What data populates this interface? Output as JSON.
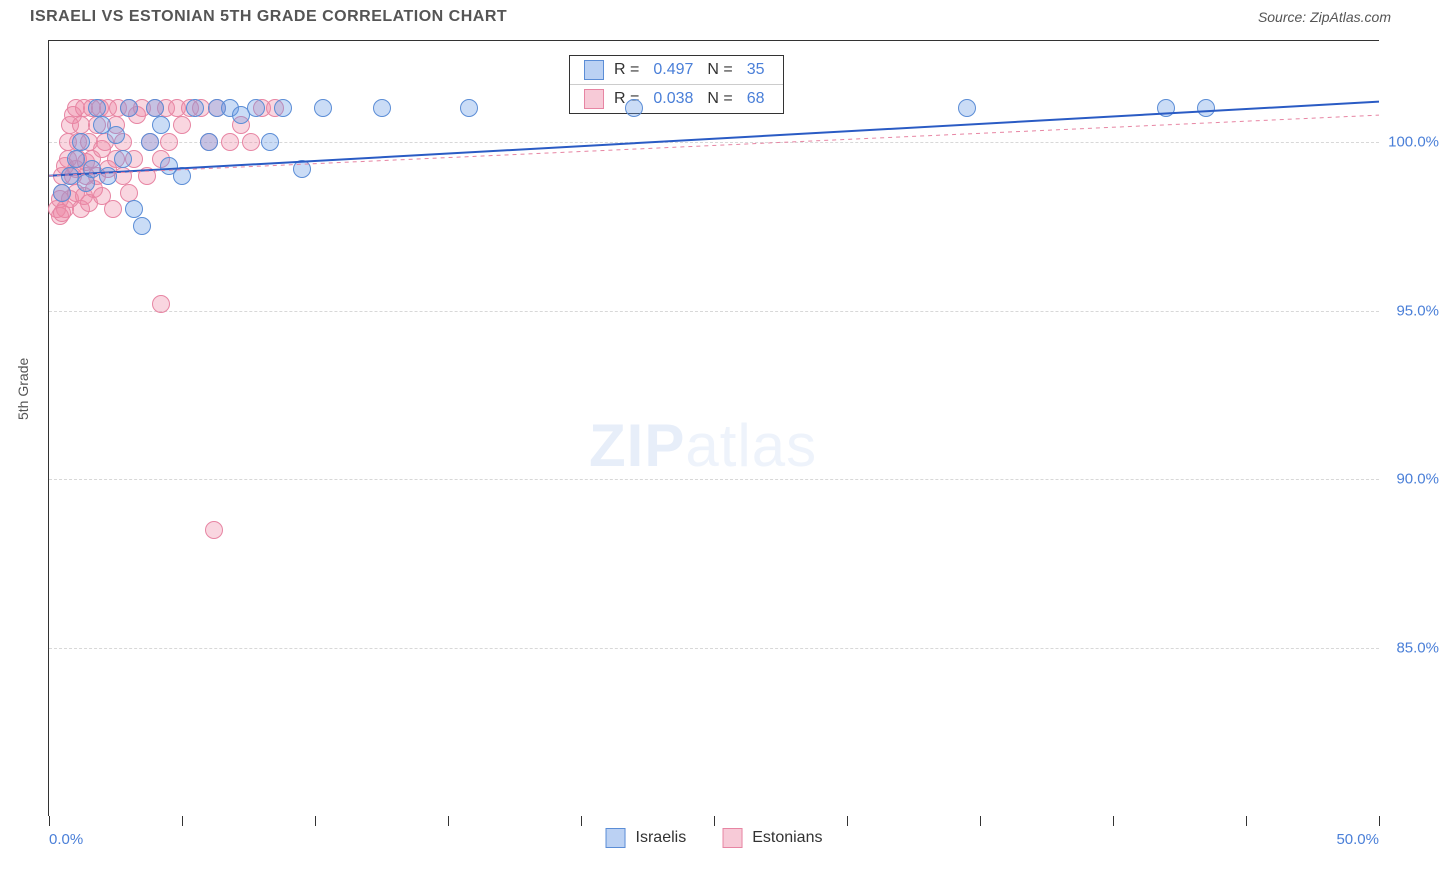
{
  "header": {
    "title": "ISRAELI VS ESTONIAN 5TH GRADE CORRELATION CHART",
    "source": "Source: ZipAtlas.com"
  },
  "axes": {
    "ylabel": "5th Grade",
    "xlim": [
      0,
      50
    ],
    "ylim": [
      80,
      103
    ],
    "xticks": [
      0,
      5,
      10,
      15,
      20,
      25,
      30,
      35,
      40,
      45,
      50
    ],
    "xlabels": [
      {
        "v": 0,
        "t": "0.0%"
      },
      {
        "v": 50,
        "t": "50.0%"
      }
    ],
    "yticks": [
      {
        "v": 85,
        "t": "85.0%"
      },
      {
        "v": 90,
        "t": "90.0%"
      },
      {
        "v": 95,
        "t": "95.0%"
      },
      {
        "v": 100,
        "t": "100.0%"
      }
    ],
    "label_fontsize": 14,
    "tick_color": "#4a7fd8",
    "grid_color": "#d8d8d8"
  },
  "statbox": {
    "rows": [
      {
        "swatch": "blue",
        "r_label": "R =",
        "r": "0.497",
        "n_label": "N =",
        "n": "35"
      },
      {
        "swatch": "pink",
        "r_label": "R =",
        "r": "0.038",
        "n_label": "N =",
        "n": "68"
      }
    ]
  },
  "legend": {
    "items": [
      {
        "swatch": "blue",
        "label": "Israelis"
      },
      {
        "swatch": "pink",
        "label": "Estonians"
      }
    ]
  },
  "watermark": {
    "bold": "ZIP",
    "rest": "atlas"
  },
  "series": {
    "israelis": {
      "color_fill": "rgba(104,154,228,0.35)",
      "color_stroke": "#5b8dd6",
      "marker_radius": 8,
      "trend": {
        "x0": 0,
        "y0": 99.0,
        "x1": 50,
        "y1": 101.2,
        "stroke": "#2a5bc4",
        "width": 2,
        "dash": "none"
      },
      "points": [
        [
          0.5,
          98.5
        ],
        [
          0.8,
          99.0
        ],
        [
          1.0,
          99.5
        ],
        [
          1.2,
          100.0
        ],
        [
          1.4,
          98.8
        ],
        [
          1.6,
          99.2
        ],
        [
          1.8,
          101.0
        ],
        [
          2.0,
          100.5
        ],
        [
          2.2,
          99.0
        ],
        [
          2.5,
          100.2
        ],
        [
          2.8,
          99.5
        ],
        [
          3.0,
          101.0
        ],
        [
          3.2,
          98.0
        ],
        [
          3.5,
          97.5
        ],
        [
          3.8,
          100.0
        ],
        [
          4.0,
          101.0
        ],
        [
          4.2,
          100.5
        ],
        [
          4.5,
          99.3
        ],
        [
          5.0,
          99.0
        ],
        [
          5.5,
          101.0
        ],
        [
          6.0,
          100.0
        ],
        [
          6.3,
          101.0
        ],
        [
          6.8,
          101.0
        ],
        [
          7.2,
          100.8
        ],
        [
          7.8,
          101.0
        ],
        [
          8.3,
          100.0
        ],
        [
          8.8,
          101.0
        ],
        [
          9.5,
          99.2
        ],
        [
          10.3,
          101.0
        ],
        [
          12.5,
          101.0
        ],
        [
          15.8,
          101.0
        ],
        [
          22.0,
          101.0
        ],
        [
          34.5,
          101.0
        ],
        [
          42.0,
          101.0
        ],
        [
          43.5,
          101.0
        ]
      ]
    },
    "estonians": {
      "color_fill": "rgba(238,138,166,0.35)",
      "color_stroke": "#e785a3",
      "marker_radius": 8,
      "trend": {
        "x0": 0,
        "y0": 99.0,
        "x1": 50,
        "y1": 100.8,
        "stroke": "#e785a3",
        "width": 1,
        "dash": "4,4"
      },
      "points": [
        [
          0.3,
          98.0
        ],
        [
          0.4,
          98.3
        ],
        [
          0.5,
          98.5
        ],
        [
          0.5,
          99.0
        ],
        [
          0.6,
          99.3
        ],
        [
          0.6,
          98.0
        ],
        [
          0.7,
          99.5
        ],
        [
          0.7,
          100.0
        ],
        [
          0.8,
          98.3
        ],
        [
          0.8,
          100.5
        ],
        [
          0.9,
          99.0
        ],
        [
          0.9,
          100.8
        ],
        [
          1.0,
          98.5
        ],
        [
          1.0,
          101.0
        ],
        [
          1.0,
          99.2
        ],
        [
          1.1,
          99.5
        ],
        [
          1.1,
          100.0
        ],
        [
          1.2,
          98.0
        ],
        [
          1.2,
          100.5
        ],
        [
          1.3,
          101.0
        ],
        [
          1.3,
          98.4
        ],
        [
          1.4,
          99.0
        ],
        [
          1.4,
          99.4
        ],
        [
          1.5,
          100.0
        ],
        [
          1.5,
          98.2
        ],
        [
          1.6,
          101.0
        ],
        [
          1.6,
          99.5
        ],
        [
          1.7,
          98.6
        ],
        [
          1.8,
          100.5
        ],
        [
          1.8,
          99.0
        ],
        [
          1.9,
          101.0
        ],
        [
          2.0,
          98.4
        ],
        [
          2.0,
          99.8
        ],
        [
          2.1,
          100.0
        ],
        [
          2.2,
          101.0
        ],
        [
          2.2,
          99.2
        ],
        [
          2.4,
          98.0
        ],
        [
          2.5,
          100.5
        ],
        [
          2.5,
          99.5
        ],
        [
          2.6,
          101.0
        ],
        [
          2.8,
          99.0
        ],
        [
          2.8,
          100.0
        ],
        [
          3.0,
          101.0
        ],
        [
          3.0,
          98.5
        ],
        [
          3.2,
          99.5
        ],
        [
          3.3,
          100.8
        ],
        [
          3.5,
          101.0
        ],
        [
          3.7,
          99.0
        ],
        [
          3.8,
          100.0
        ],
        [
          4.0,
          101.0
        ],
        [
          4.2,
          99.5
        ],
        [
          4.4,
          101.0
        ],
        [
          4.5,
          100.0
        ],
        [
          4.8,
          101.0
        ],
        [
          5.0,
          100.5
        ],
        [
          5.3,
          101.0
        ],
        [
          5.7,
          101.0
        ],
        [
          6.0,
          100.0
        ],
        [
          6.3,
          101.0
        ],
        [
          6.8,
          100.0
        ],
        [
          7.2,
          100.5
        ],
        [
          7.6,
          100.0
        ],
        [
          8.0,
          101.0
        ],
        [
          8.5,
          101.0
        ],
        [
          4.2,
          95.2
        ],
        [
          6.2,
          88.5
        ],
        [
          0.4,
          97.8
        ],
        [
          0.5,
          97.9
        ]
      ]
    }
  }
}
